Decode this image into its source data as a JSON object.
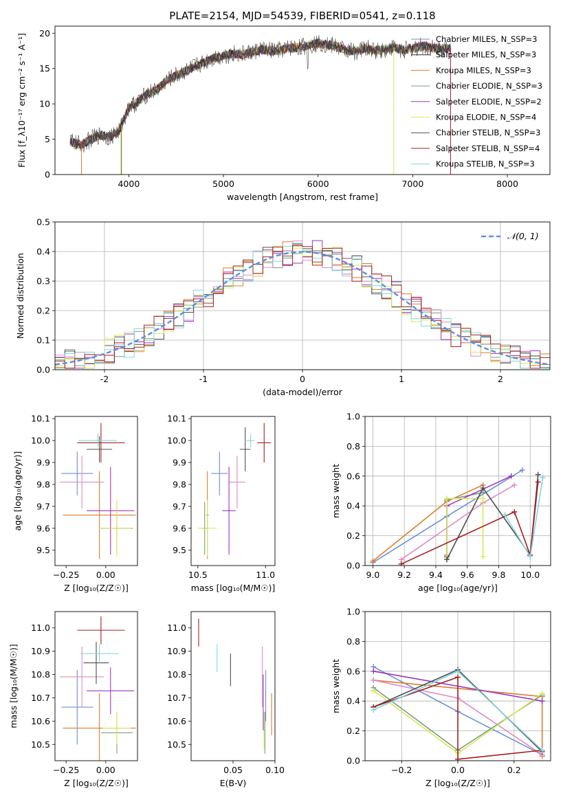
{
  "palette": [
    "#6b8fd6",
    "#d97e2e",
    "#e08ac2",
    "#7a9e7e",
    "#9b35c0",
    "#d7e85a",
    "#4d4d4d",
    "#a51f1f",
    "#7fd6dd"
  ],
  "chart_data": [
    {
      "id": "spectrum",
      "type": "line",
      "title": "PLATE=2154, MJD=54539, FIBERID=0541, z=0.118",
      "xlabel": "wavelength [Angstrom, rest frame]",
      "ylabel": "Flux [f_λ10⁻¹⁷ erg cm⁻² s⁻¹ A⁻¹]",
      "xlim": [
        3220,
        8450
      ],
      "ylim": [
        0,
        21
      ],
      "xticks": [
        4000,
        5000,
        6000,
        7000,
        8000
      ],
      "yticks": [
        0,
        5,
        10,
        15,
        20
      ],
      "continuum": {
        "x": [
          3380,
          3500,
          3600,
          3700,
          3800,
          3900,
          4000,
          4100,
          4200,
          4300,
          4400,
          4500,
          4600,
          4700,
          4800,
          4900,
          5000,
          5100,
          5200,
          5300,
          5400,
          5500,
          5600,
          5700,
          5800,
          5900,
          6000,
          6100,
          6200,
          6300,
          6400,
          6500,
          6600,
          6700,
          6800,
          6900,
          7000,
          7100,
          7200,
          7300,
          7400
        ],
        "y": [
          4.6,
          4.2,
          5.0,
          5.6,
          5.3,
          6.2,
          9.5,
          10.3,
          11.5,
          12.0,
          13.3,
          14.0,
          14.6,
          15.3,
          15.9,
          16.5,
          16.8,
          17.1,
          17.0,
          17.3,
          17.7,
          17.5,
          17.6,
          17.9,
          18.0,
          18.3,
          18.6,
          18.4,
          18.1,
          17.6,
          17.4,
          17.9,
          17.5,
          17.7,
          18.0,
          17.6,
          17.8,
          18.2,
          17.9,
          17.8,
          17.9
        ]
      },
      "legend": {
        "position": "right",
        "entries": [
          "Chabrier MILES, N_SSP=3",
          "Salpeter MILES, N_SSP=3",
          "Kroupa MILES, N_SSP=3",
          "Chabrier ELODIE, N_SSP=3",
          "Salpeter ELODIE, N_SSP=2",
          "Kroupa ELODIE, N_SSP=4",
          "Chabrier STELIB, N_SSP=3",
          "Salpeter STELIB, N_SSP=4",
          "Kroupa STELIB, N_SSP=3"
        ],
        "colors": [
          "#7f8c99",
          "#2b2b2b",
          "#d97e2e",
          "#7a9e7e",
          "#9b35c0",
          "#d7e85a",
          "#4d4d4d",
          "#a51f1f",
          "#7fd6dd"
        ]
      }
    },
    {
      "id": "residuals",
      "type": "histogram",
      "xlabel": "(data-model)/error",
      "ylabel": "Normed distribution",
      "xlim": [
        -2.5,
        2.5
      ],
      "ylim": [
        0,
        0.5
      ],
      "xticks": [
        -2,
        -1,
        0,
        1,
        2
      ],
      "yticks": [
        0.0,
        0.1,
        0.2,
        0.3,
        0.4,
        0.5
      ],
      "bin_width": 0.1,
      "grid": true,
      "legend": {
        "position": "top-right",
        "entry": "𝒩(0, 1)"
      },
      "gaussian": {
        "mean": 0,
        "sigma": 1,
        "color": "#5a8fe0"
      }
    },
    {
      "id": "age_vs_Z",
      "type": "errorbar",
      "xlabel": "Z [log₁₀(Z/Z☉)]",
      "ylabel": "age  [log₁₀(age/yr)]",
      "xlim": [
        -0.32,
        0.2
      ],
      "ylim": [
        9.43,
        10.11
      ],
      "xticks": [
        -0.25,
        0.0
      ],
      "xtick_labels": [
        "−0.25",
        "0.00"
      ],
      "yticks": [
        9.5,
        9.6,
        9.7,
        9.8,
        9.9,
        10.0,
        10.1
      ],
      "points": [
        {
          "color": "#6b8fd6",
          "x": -0.18,
          "xerr": 0.1,
          "y": 9.85,
          "yerr": 0.1
        },
        {
          "color": "#d97e2e",
          "x": -0.04,
          "xerr": 0.23,
          "y": 9.66,
          "yerr": 0.2
        },
        {
          "color": "#e08ac2",
          "x": -0.15,
          "xerr": 0.14,
          "y": 9.81,
          "yerr": 0.12
        },
        {
          "color": "#7a9e7e",
          "x": 0.07,
          "xerr": 0.1,
          "y": 9.6,
          "yerr": 0.12
        },
        {
          "color": "#9b35c0",
          "x": 0.03,
          "xerr": 0.15,
          "y": 9.68,
          "yerr": 0.2
        },
        {
          "color": "#d7e85a",
          "x": 0.07,
          "xerr": 0.09,
          "y": 9.6,
          "yerr": 0.13
        },
        {
          "color": "#4d4d4d",
          "x": -0.04,
          "xerr": 0.08,
          "y": 9.96,
          "yerr": 0.06
        },
        {
          "color": "#a51f1f",
          "x": -0.03,
          "xerr": 0.15,
          "y": 9.99,
          "yerr": 0.09
        },
        {
          "color": "#7fd6dd",
          "x": -0.05,
          "xerr": 0.12,
          "y": 10.0,
          "yerr": 0.03
        }
      ]
    },
    {
      "id": "age_vs_mass",
      "type": "errorbar",
      "xlabel": "mass [log₁₀(M/M☉)]",
      "ylabel": "",
      "xlim": [
        10.45,
        11.07
      ],
      "ylim": [
        9.43,
        10.11
      ],
      "xticks": [
        10.5,
        11.0
      ],
      "xtick_labels": [
        "10.5",
        "11.0"
      ],
      "yticks": [
        9.5,
        9.6,
        9.7,
        9.8,
        9.9,
        10.0,
        10.1
      ],
      "points": [
        {
          "color": "#6b8fd6",
          "x": 10.66,
          "xerr": 0.06,
          "y": 9.85,
          "yerr": 0.1
        },
        {
          "color": "#d97e2e",
          "x": 10.57,
          "xerr": 0.01,
          "y": 9.66,
          "yerr": 0.2
        },
        {
          "color": "#e08ac2",
          "x": 10.79,
          "xerr": 0.06,
          "y": 9.81,
          "yerr": 0.12
        },
        {
          "color": "#7a9e7e",
          "x": 10.55,
          "xerr": 0.02,
          "y": 9.6,
          "yerr": 0.12
        },
        {
          "color": "#9b35c0",
          "x": 10.73,
          "xerr": 0.05,
          "y": 9.68,
          "yerr": 0.2
        },
        {
          "color": "#d7e85a",
          "x": 10.57,
          "xerr": 0.07,
          "y": 9.6,
          "yerr": 0.13
        },
        {
          "color": "#4d4d4d",
          "x": 10.85,
          "xerr": 0.04,
          "y": 9.96,
          "yerr": 0.1
        },
        {
          "color": "#a51f1f",
          "x": 10.99,
          "xerr": 0.05,
          "y": 9.99,
          "yerr": 0.09
        },
        {
          "color": "#7fd6dd",
          "x": 10.89,
          "xerr": 0.03,
          "y": 10.0,
          "yerr": 0.03
        }
      ]
    },
    {
      "id": "weight_vs_age",
      "type": "line",
      "xlabel": "age  [log₁₀(age/yr)]",
      "ylabel": "mass weight",
      "xlim": [
        8.95,
        10.13
      ],
      "ylim": [
        0,
        1
      ],
      "xticks": [
        9.0,
        9.2,
        9.4,
        9.6,
        9.8,
        10.0
      ],
      "xtick_labels": [
        "9.0",
        "9.2",
        "9.4",
        "9.6",
        "9.8",
        "10.0"
      ],
      "yticks": [
        0.0,
        0.2,
        0.4,
        0.6,
        0.8,
        1.0
      ],
      "grid": true,
      "series": [
        {
          "color": "#6b8fd6",
          "x": [
            9.0,
            9.47,
            9.95
          ],
          "y": [
            0.02,
            0.33,
            0.64
          ]
        },
        {
          "color": "#d97e2e",
          "x": [
            9.0,
            9.47,
            9.7
          ],
          "y": [
            0.03,
            0.43,
            0.54
          ]
        },
        {
          "color": "#e08ac2",
          "x": [
            9.18,
            9.7,
            9.9
          ],
          "y": [
            0.04,
            0.42,
            0.54
          ]
        },
        {
          "color": "#7a9e7e",
          "x": [
            9.47,
            9.47,
            9.7
          ],
          "y": [
            0.07,
            0.44,
            0.49
          ]
        },
        {
          "color": "#9b35c0",
          "x": [
            9.47,
            9.47,
            9.88
          ],
          "y": [
            0.06,
            0.4,
            0.6
          ]
        },
        {
          "color": "#d7e85a",
          "x": [
            9.47,
            9.47,
            9.7,
            9.7
          ],
          "y": [
            0.05,
            0.45,
            0.45,
            0.06
          ]
        },
        {
          "color": "#4d4d4d",
          "x": [
            9.47,
            9.7,
            10.0,
            10.05
          ],
          "y": [
            0.04,
            0.52,
            0.07,
            0.61
          ]
        },
        {
          "color": "#a51f1f",
          "x": [
            9.18,
            9.9,
            10.0,
            10.05
          ],
          "y": [
            0.01,
            0.36,
            0.07,
            0.56
          ]
        },
        {
          "color": "#7fd6dd",
          "x": [
            9.84,
            10.0,
            10.08
          ],
          "y": [
            0.34,
            0.06,
            0.59
          ]
        }
      ]
    },
    {
      "id": "mass_vs_Z",
      "type": "errorbar",
      "xlabel": "Z [log₁₀(Z/Z☉)]",
      "ylabel": "mass [log₁₀(M/M☉)]",
      "xlim": [
        -0.32,
        0.2
      ],
      "ylim": [
        10.43,
        11.07
      ],
      "xticks": [
        -0.25,
        0.0
      ],
      "xtick_labels": [
        "−0.25",
        "0.00"
      ],
      "yticks": [
        10.5,
        10.6,
        10.7,
        10.8,
        10.9,
        11.0
      ],
      "points": [
        {
          "color": "#6b8fd6",
          "x": -0.18,
          "xerr": 0.1,
          "y": 10.66,
          "yerr": 0.16
        },
        {
          "color": "#d97e2e",
          "x": -0.04,
          "xerr": 0.23,
          "y": 10.57,
          "yerr": 0.15
        },
        {
          "color": "#e08ac2",
          "x": -0.15,
          "xerr": 0.14,
          "y": 10.79,
          "yerr": 0.13
        },
        {
          "color": "#7a9e7e",
          "x": 0.07,
          "xerr": 0.1,
          "y": 10.55,
          "yerr": 0.09
        },
        {
          "color": "#9b35c0",
          "x": 0.03,
          "xerr": 0.15,
          "y": 10.73,
          "yerr": 0.1
        },
        {
          "color": "#d7e85a",
          "x": 0.07,
          "xerr": 0.09,
          "y": 10.57,
          "yerr": 0.07
        },
        {
          "color": "#4d4d4d",
          "x": -0.06,
          "xerr": 0.08,
          "y": 10.85,
          "yerr": 0.09
        },
        {
          "color": "#a51f1f",
          "x": -0.03,
          "xerr": 0.15,
          "y": 10.99,
          "yerr": 0.06
        },
        {
          "color": "#7fd6dd",
          "x": -0.04,
          "xerr": 0.12,
          "y": 10.89,
          "yerr": 0.04
        }
      ]
    },
    {
      "id": "mass_vs_ebv",
      "type": "errorbar",
      "xlabel": "E(B-V)",
      "ylabel": "",
      "xlim": [
        0.0,
        0.1
      ],
      "ylim": [
        10.43,
        11.07
      ],
      "xticks": [
        0.05,
        0.1
      ],
      "xtick_labels": [
        "0.05",
        "0.10"
      ],
      "yticks": [
        10.5,
        10.6,
        10.7,
        10.8,
        10.9,
        11.0
      ],
      "points": [
        {
          "color": "#6b8fd6",
          "x": 0.089,
          "xerr": 0,
          "y": 10.71,
          "yerr": 0.11
        },
        {
          "color": "#d97e2e",
          "x": 0.096,
          "xerr": 0,
          "y": 10.63,
          "yerr": 0.09
        },
        {
          "color": "#e08ac2",
          "x": 0.085,
          "xerr": 0,
          "y": 10.79,
          "yerr": 0.13
        },
        {
          "color": "#7a9e7e",
          "x": 0.088,
          "xerr": 0,
          "y": 10.55,
          "yerr": 0.09
        },
        {
          "color": "#9b35c0",
          "x": 0.086,
          "xerr": 0,
          "y": 10.68,
          "yerr": 0.12
        },
        {
          "color": "#d7e85a",
          "x": 0.087,
          "xerr": 0,
          "y": 10.56,
          "yerr": 0.08
        },
        {
          "color": "#4d4d4d",
          "x": 0.047,
          "xerr": 0,
          "y": 10.82,
          "yerr": 0.07
        },
        {
          "color": "#a51f1f",
          "x": 0.009,
          "xerr": 0,
          "y": 10.98,
          "yerr": 0.06
        },
        {
          "color": "#7fd6dd",
          "x": 0.031,
          "xerr": 0,
          "y": 10.87,
          "yerr": 0.06
        }
      ]
    },
    {
      "id": "weight_vs_Z",
      "type": "line",
      "xlabel": "Z [log₁₀(Z/Z☉)]",
      "ylabel": "mass weight",
      "xlim": [
        -0.33,
        0.33
      ],
      "ylim": [
        0,
        1
      ],
      "xticks": [
        -0.2,
        0.0,
        0.2
      ],
      "xtick_labels": [
        "−0.2",
        "0.0",
        "0.2"
      ],
      "yticks": [
        0.0,
        0.2,
        0.4,
        0.6,
        0.8,
        1.0
      ],
      "grid": true,
      "series": [
        {
          "color": "#6b8fd6",
          "x": [
            -0.3,
            0.0,
            0.3
          ],
          "y": [
            0.63,
            0.33,
            0.04
          ]
        },
        {
          "color": "#d97e2e",
          "x": [
            -0.3,
            0.3,
            0.3
          ],
          "y": [
            0.54,
            0.43,
            0.03
          ]
        },
        {
          "color": "#e08ac2",
          "x": [
            -0.3,
            0.0,
            0.3
          ],
          "y": [
            0.54,
            0.42,
            0.04
          ]
        },
        {
          "color": "#7a9e7e",
          "x": [
            -0.3,
            0.0,
            0.3
          ],
          "y": [
            0.49,
            0.07,
            0.44
          ]
        },
        {
          "color": "#9b35c0",
          "x": [
            -0.3,
            0.3
          ],
          "y": [
            0.6,
            0.4
          ]
        },
        {
          "color": "#d7e85a",
          "x": [
            -0.3,
            0.0,
            0.3
          ],
          "y": [
            0.47,
            0.05,
            0.45
          ]
        },
        {
          "color": "#4d4d4d",
          "x": [
            -0.3,
            0.0,
            0.3
          ],
          "y": [
            0.36,
            0.61,
            0.06
          ]
        },
        {
          "color": "#a51f1f",
          "x": [
            -0.3,
            0.0,
            0.0,
            0.3
          ],
          "y": [
            0.36,
            0.56,
            0.01,
            0.07
          ]
        },
        {
          "color": "#7fd6dd",
          "x": [
            -0.3,
            0.0,
            0.3
          ],
          "y": [
            0.34,
            0.6,
            0.07
          ]
        }
      ]
    }
  ]
}
